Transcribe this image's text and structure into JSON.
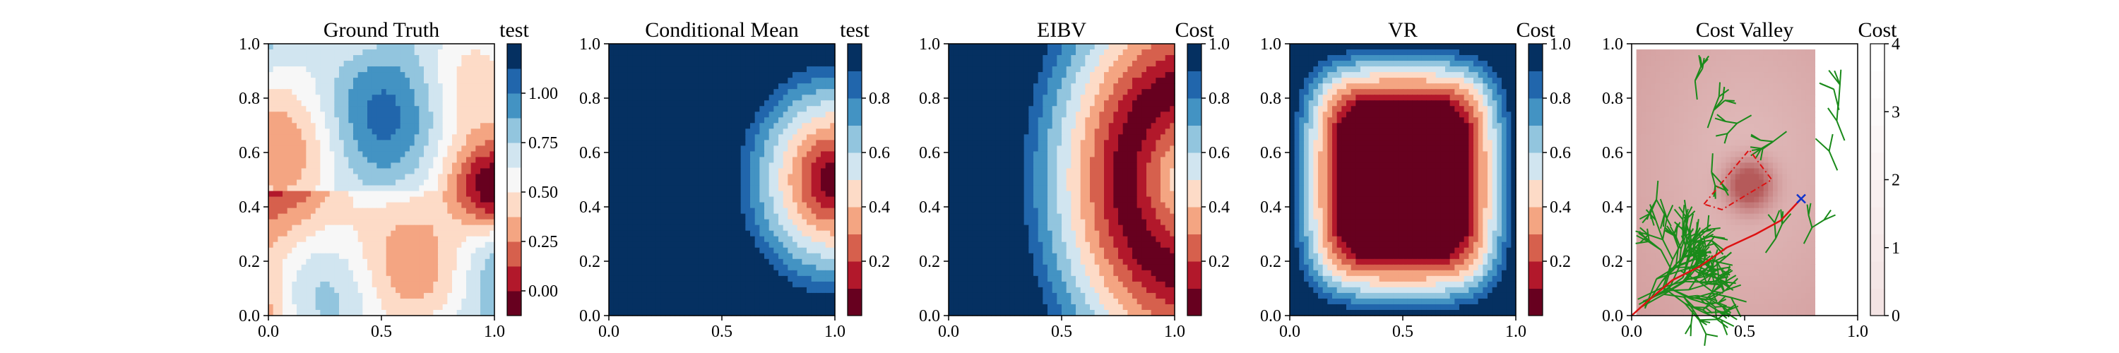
{
  "figure": {
    "background": "#ffffff"
  },
  "chart_data": [
    {
      "type": "heatmap",
      "title": "Ground Truth",
      "colorbar_label": "test",
      "colormap": "RdBu",
      "xlim": [
        0,
        1
      ],
      "ylim": [
        0,
        1
      ],
      "xticks": [
        "0.0",
        "0.5",
        "1.0"
      ],
      "yticks": [
        "0.0",
        "0.2",
        "0.4",
        "0.6",
        "0.8",
        "1.0"
      ],
      "colorbar_range": [
        -0.125,
        1.25
      ],
      "colorbar_ticks": [
        "0.00",
        "0.25",
        "0.50",
        "0.75",
        "1.00"
      ],
      "colorbar_tick_values": [
        0,
        0.25,
        0.5,
        0.75,
        1.0
      ],
      "levels": 11,
      "field": "ground_truth"
    },
    {
      "type": "heatmap",
      "title": "Conditional Mean",
      "colorbar_label": "test",
      "colormap": "RdBu",
      "xlim": [
        0,
        1
      ],
      "ylim": [
        0,
        1
      ],
      "xticks": [
        "0.0",
        "0.5",
        "1.0"
      ],
      "yticks": [
        "0.0",
        "0.2",
        "0.4",
        "0.6",
        "0.8",
        "1.0"
      ],
      "colorbar_range": [
        0.0,
        1.0
      ],
      "colorbar_ticks": [
        "0.2",
        "0.4",
        "0.6",
        "0.8"
      ],
      "colorbar_tick_values": [
        0.2,
        0.4,
        0.6,
        0.8
      ],
      "levels": 10,
      "field": "cond_mean"
    },
    {
      "type": "heatmap",
      "title": "EIBV",
      "colorbar_label": "Cost",
      "colormap": "RdBu",
      "xlim": [
        0,
        1
      ],
      "ylim": [
        0,
        1
      ],
      "xticks": [
        "0.0",
        "0.5",
        "1.0"
      ],
      "yticks": [
        "0.0",
        "0.2",
        "0.4",
        "0.6",
        "0.8",
        "1.0"
      ],
      "colorbar_range": [
        0.0,
        1.0
      ],
      "colorbar_ticks": [
        "0.2",
        "0.4",
        "0.6",
        "0.8",
        "1.0"
      ],
      "colorbar_tick_values": [
        0.2,
        0.4,
        0.6,
        0.8,
        1.0
      ],
      "levels": 10,
      "field": "eibv"
    },
    {
      "type": "heatmap",
      "title": "VR",
      "colorbar_label": "Cost",
      "colormap": "RdBu",
      "xlim": [
        0,
        1
      ],
      "ylim": [
        0,
        1
      ],
      "xticks": [
        "0.0",
        "0.5",
        "1.0"
      ],
      "yticks": [
        "0.0",
        "0.2",
        "0.4",
        "0.6",
        "0.8",
        "1.0"
      ],
      "colorbar_range": [
        0.0,
        1.0
      ],
      "colorbar_ticks": [
        "0.2",
        "0.4",
        "0.6",
        "0.8",
        "1.0"
      ],
      "colorbar_tick_values": [
        0.2,
        0.4,
        0.6,
        0.8,
        1.0
      ],
      "levels": 10,
      "field": "vr"
    },
    {
      "type": "heatmap",
      "title": "Cost Valley",
      "colorbar_label": "Cost",
      "colormap": "RdBu",
      "xlim": [
        0,
        1
      ],
      "ylim": [
        0,
        1
      ],
      "xticks": [
        "0.0",
        "0.5",
        "1.0"
      ],
      "yticks": [
        "0.0",
        "0.2",
        "0.4",
        "0.6",
        "0.8",
        "1.0"
      ],
      "colorbar_range": [
        0,
        4
      ],
      "colorbar_ticks": [
        "0",
        "1",
        "2",
        "3",
        "4"
      ],
      "colorbar_tick_values": [
        0,
        1,
        2,
        3,
        4
      ],
      "levels": 10,
      "field": "cost_valley",
      "tree_color": "#1a8a1a",
      "path_color": "#dd1111",
      "path": [
        [
          0,
          0
        ],
        [
          0.08,
          0.06
        ],
        [
          0.18,
          0.13
        ],
        [
          0.3,
          0.18
        ],
        [
          0.42,
          0.25
        ],
        [
          0.55,
          0.3
        ],
        [
          0.66,
          0.35
        ],
        [
          0.75,
          0.43
        ]
      ],
      "polygon": [
        [
          0.32,
          0.41
        ],
        [
          0.52,
          0.61
        ],
        [
          0.62,
          0.5
        ],
        [
          0.4,
          0.39
        ]
      ],
      "polygon_color": "#dd1111",
      "goal_marker_color": "#1133cc",
      "goal": [
        0.75,
        0.43
      ]
    }
  ]
}
